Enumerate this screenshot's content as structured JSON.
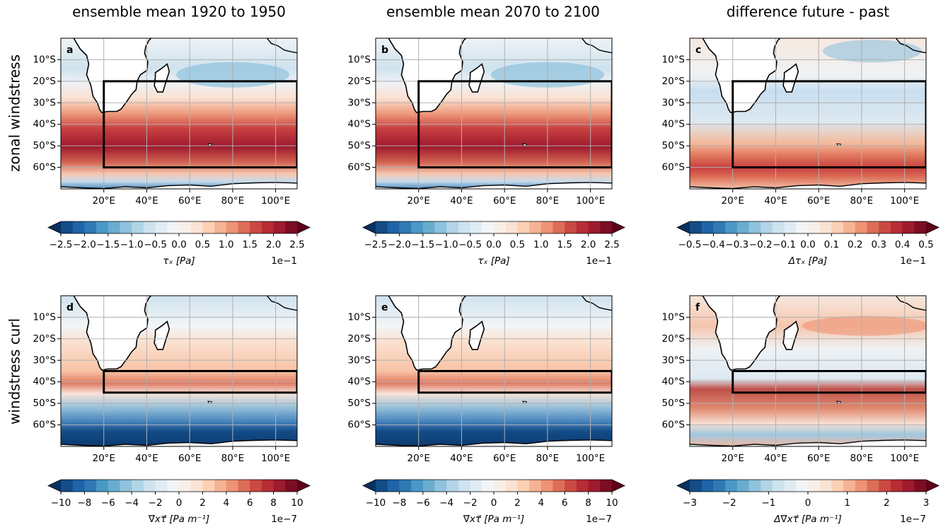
{
  "column_titles": [
    "ensemble mean 1920 to 1950",
    "ensemble mean 2070 to 2100",
    "difference future - past"
  ],
  "row_labels": [
    "zonal windstress",
    "windstress curl"
  ],
  "maps": {
    "xlim": [
      0,
      110
    ],
    "ylim": [
      -70,
      0
    ],
    "lon_ticks": [
      {
        "value": 20,
        "label": "20°E"
      },
      {
        "value": 40,
        "label": "40°E"
      },
      {
        "value": 60,
        "label": "60°E"
      },
      {
        "value": 80,
        "label": "80°E"
      },
      {
        "value": 100,
        "label": "100°E"
      }
    ],
    "lat_ticks": [
      {
        "value": -10,
        "label": "10°S"
      },
      {
        "value": -20,
        "label": "20°S"
      },
      {
        "value": -30,
        "label": "30°S"
      },
      {
        "value": -40,
        "label": "40°S"
      },
      {
        "value": -50,
        "label": "50°S"
      },
      {
        "value": -60,
        "label": "60°S"
      }
    ],
    "grid": true,
    "colormap": [
      "#134c87",
      "#1f63a8",
      "#2f79b5",
      "#4a98c7",
      "#6aacd0",
      "#8fc2dd",
      "#b1d5e7",
      "#cde3ee",
      "#e0ecf3",
      "#f2f5f7",
      "#f9efe9",
      "#fbe3d4",
      "#fcd0b5",
      "#f6b394",
      "#ee9373",
      "#dc6e57",
      "#ca4a43",
      "#b72c35",
      "#9e1a2e",
      "#7a0d24"
    ],
    "extend_colors": [
      "#08305f",
      "#5f0019"
    ],
    "panels": [
      {
        "letter": "a",
        "box": {
          "lon": [
            20,
            110
          ],
          "lat": [
            -60,
            -20
          ]
        },
        "colorbar": {
          "clim": [
            -2.5,
            2.5
          ],
          "label": "τₓ [Pa]",
          "offset": "1e−1",
          "ticks": [
            {
              "value": -2.5,
              "label": "−2.5"
            },
            {
              "value": -2.0,
              "label": "−2.0"
            },
            {
              "value": -1.5,
              "label": "−1.5"
            },
            {
              "value": -1.0,
              "label": "−1.0"
            },
            {
              "value": -0.5,
              "label": "−0.5"
            },
            {
              "value": 0,
              "label": "0.0"
            },
            0.5,
            {
              "value": 1,
              "label": "1.0"
            },
            1.5,
            {
              "value": 2,
              "label": "2.0"
            },
            2.5
          ]
        }
      },
      {
        "letter": "b",
        "box": {
          "lon": [
            20,
            110
          ],
          "lat": [
            -60,
            -20
          ]
        },
        "colorbar": {
          "clim": [
            -2.5,
            2.5
          ],
          "label": "τₓ [Pa]",
          "offset": "1e−1",
          "ticks": [
            {
              "value": -2.5,
              "label": "−2.5"
            },
            {
              "value": -2.0,
              "label": "−2.0"
            },
            {
              "value": -1.5,
              "label": "−1.5"
            },
            {
              "value": -1.0,
              "label": "−1.0"
            },
            {
              "value": -0.5,
              "label": "−0.5"
            },
            {
              "value": 0,
              "label": "0.0"
            },
            0.5,
            {
              "value": 1,
              "label": "1.0"
            },
            1.5,
            {
              "value": 2,
              "label": "2.0"
            },
            2.5
          ]
        }
      },
      {
        "letter": "c",
        "box": {
          "lon": [
            20,
            110
          ],
          "lat": [
            -60,
            -20
          ]
        },
        "colorbar": {
          "clim": [
            -0.5,
            0.5
          ],
          "label": "Δτₓ [Pa]",
          "offset": "1e−1",
          "ticks": [
            {
              "value": -0.5,
              "label": "−0.5"
            },
            {
              "value": -0.4,
              "label": "−0.4"
            },
            {
              "value": -0.3,
              "label": "−0.3"
            },
            {
              "value": -0.2,
              "label": "−0.2"
            },
            {
              "value": -0.1,
              "label": "−0.1"
            },
            {
              "value": 0,
              "label": "0.0"
            },
            0.1,
            0.2,
            0.3,
            0.4,
            0.5
          ]
        }
      },
      {
        "letter": "d",
        "box": {
          "lon": [
            20,
            110
          ],
          "lat": [
            -45,
            -35
          ]
        },
        "colorbar": {
          "clim": [
            -10,
            10
          ],
          "label": "∇⃗xτ⃗ [Pa m⁻¹]",
          "offset": "1e−7",
          "ticks": [
            {
              "value": -10,
              "label": "−10"
            },
            {
              "value": -8,
              "label": "−8"
            },
            {
              "value": -6,
              "label": "−6"
            },
            {
              "value": -4,
              "label": "−4"
            },
            {
              "value": -2,
              "label": "−2"
            },
            0,
            2,
            4,
            6,
            8,
            10
          ]
        }
      },
      {
        "letter": "e",
        "box": {
          "lon": [
            20,
            110
          ],
          "lat": [
            -45,
            -35
          ]
        },
        "colorbar": {
          "clim": [
            -10,
            10
          ],
          "label": "∇⃗xτ⃗ [Pa m⁻¹]",
          "offset": "1e−7",
          "ticks": [
            {
              "value": -10,
              "label": "−10"
            },
            {
              "value": -8,
              "label": "−8"
            },
            {
              "value": -6,
              "label": "−6"
            },
            {
              "value": -4,
              "label": "−4"
            },
            {
              "value": -2,
              "label": "−2"
            },
            0,
            2,
            4,
            6,
            8,
            10
          ]
        }
      },
      {
        "letter": "f",
        "box": {
          "lon": [
            20,
            110
          ],
          "lat": [
            -45,
            -35
          ]
        },
        "colorbar": {
          "clim": [
            -3,
            3
          ],
          "label": "Δ∇⃗xτ⃗ [Pa m⁻¹]",
          "offset": "1e−7",
          "ticks": [
            {
              "value": -3,
              "label": "−3"
            },
            {
              "value": -2,
              "label": "−2"
            },
            {
              "value": -1,
              "label": "−1"
            },
            0,
            1,
            2,
            3
          ]
        }
      }
    ]
  }
}
